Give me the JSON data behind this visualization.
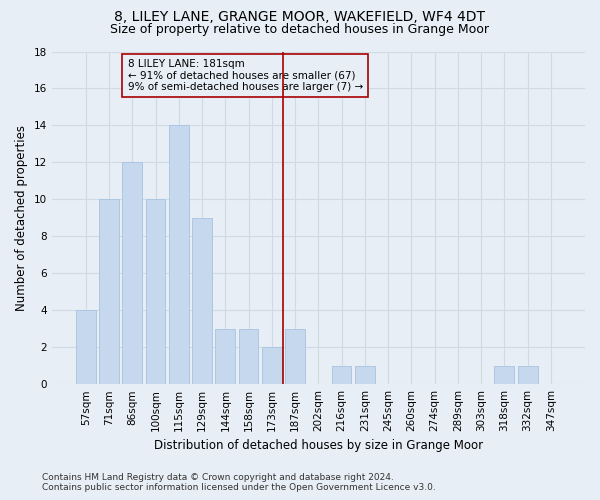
{
  "title": "8, LILEY LANE, GRANGE MOOR, WAKEFIELD, WF4 4DT",
  "subtitle": "Size of property relative to detached houses in Grange Moor",
  "xlabel": "Distribution of detached houses by size in Grange Moor",
  "ylabel": "Number of detached properties",
  "categories": [
    "57sqm",
    "71sqm",
    "86sqm",
    "100sqm",
    "115sqm",
    "129sqm",
    "144sqm",
    "158sqm",
    "173sqm",
    "187sqm",
    "202sqm",
    "216sqm",
    "231sqm",
    "245sqm",
    "260sqm",
    "274sqm",
    "289sqm",
    "303sqm",
    "318sqm",
    "332sqm",
    "347sqm"
  ],
  "values": [
    4,
    10,
    12,
    10,
    14,
    9,
    3,
    3,
    2,
    3,
    0,
    1,
    1,
    0,
    0,
    0,
    0,
    0,
    1,
    1,
    0
  ],
  "bar_color": "#c5d8ed",
  "bar_edgecolor": "#a8c4df",
  "vline_x": 8.5,
  "vline_color": "#aa0000",
  "annotation_text": "8 LILEY LANE: 181sqm\n← 91% of detached houses are smaller (67)\n9% of semi-detached houses are larger (7) →",
  "annotation_box_color": "#aa0000",
  "ylim": [
    0,
    18
  ],
  "yticks": [
    0,
    2,
    4,
    6,
    8,
    10,
    12,
    14,
    16,
    18
  ],
  "footnote": "Contains HM Land Registry data © Crown copyright and database right 2024.\nContains public sector information licensed under the Open Government Licence v3.0.",
  "background_color": "#e8eef5",
  "grid_color": "#d0dae5",
  "title_fontsize": 10,
  "subtitle_fontsize": 9,
  "xlabel_fontsize": 8.5,
  "ylabel_fontsize": 8.5,
  "tick_fontsize": 7.5,
  "annotation_fontsize": 7.5,
  "footnote_fontsize": 6.5
}
